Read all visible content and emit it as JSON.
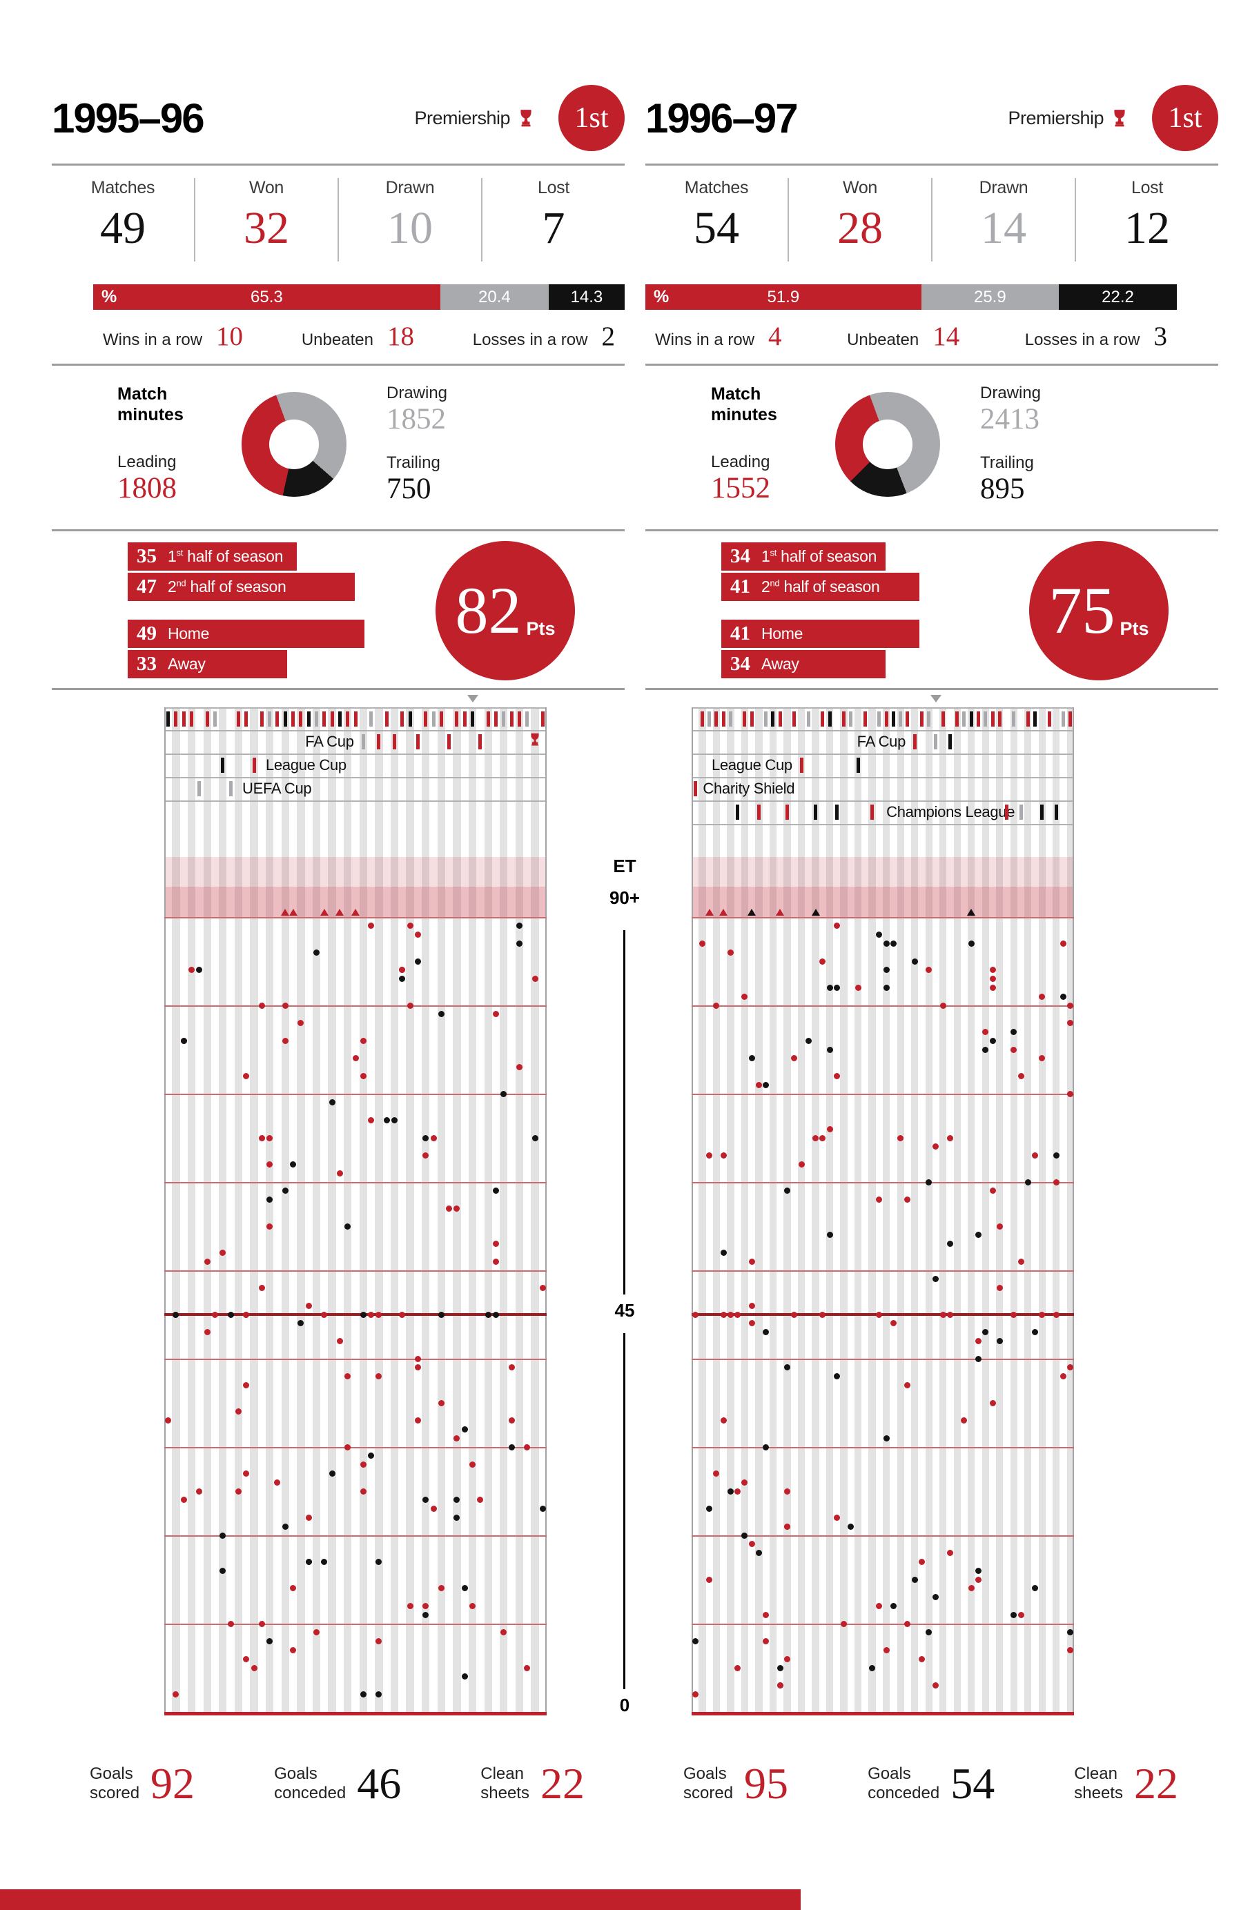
{
  "page": {
    "footer_bar_color": "#c0202a"
  },
  "colors": {
    "red": "#c0202a",
    "gray": "#a8aaad",
    "dark": "#1b1b1b"
  },
  "axis": {
    "extra_time_label": "ET",
    "ninety_plus_label": "90+",
    "half_time_label": "45",
    "zero_label": "0"
  },
  "seasons": [
    {
      "title": "1995–96",
      "competition": {
        "name": "Premiership",
        "position": "1st"
      },
      "record": [
        {
          "label": "Matches",
          "value": "49",
          "color": "dark"
        },
        {
          "label": "Won",
          "value": "32",
          "color": "red"
        },
        {
          "label": "Drawn",
          "value": "10",
          "color": "gray"
        },
        {
          "label": "Lost",
          "value": "7",
          "color": "dark"
        }
      ],
      "pct": {
        "symbol": "%",
        "segments": [
          {
            "value": "65.3",
            "type": "win"
          },
          {
            "value": "20.4",
            "type": "draw"
          },
          {
            "value": "14.3",
            "type": "loss"
          }
        ]
      },
      "streaks": [
        {
          "label": "Wins in a row",
          "value": "10",
          "color": "red"
        },
        {
          "label": "Unbeaten",
          "value": "18",
          "color": "red"
        },
        {
          "label": "Losses in a row",
          "value": "2",
          "color": "dark"
        }
      ],
      "minutes": {
        "heading_line1": "Match",
        "heading_line2": "minutes",
        "leading_label": "Leading",
        "leading": 1808,
        "drawing_label": "Drawing",
        "drawing": 1852,
        "trailing_label": "Trailing",
        "trailing": 750
      },
      "split_bars": [
        {
          "value": 35,
          "pre": "1",
          "sup": "st",
          "post": " half of season",
          "group_gap": false
        },
        {
          "value": 47,
          "pre": "2",
          "sup": "nd",
          "post": " half of season",
          "group_gap": false
        },
        {
          "value": 49,
          "pre": "Home",
          "sup": "",
          "post": "",
          "group_gap": true
        },
        {
          "value": 33,
          "pre": "Away",
          "sup": "",
          "post": "",
          "group_gap": false
        }
      ],
      "points": {
        "value": "82",
        "unit": "Pts"
      },
      "totals": [
        {
          "label_line1": "Goals",
          "label_line2": "scored",
          "value": "92",
          "color": "red"
        },
        {
          "label_line1": "Goals",
          "label_line2": "conceded",
          "value": "46",
          "color": "dark"
        },
        {
          "label_line1": "Clean",
          "label_line2": "sheets",
          "value": "22",
          "color": "red"
        }
      ]
    },
    {
      "title": "1996–97",
      "competition": {
        "name": "Premiership",
        "position": "1st"
      },
      "record": [
        {
          "label": "Matches",
          "value": "54",
          "color": "dark"
        },
        {
          "label": "Won",
          "value": "28",
          "color": "red"
        },
        {
          "label": "Drawn",
          "value": "14",
          "color": "gray"
        },
        {
          "label": "Lost",
          "value": "12",
          "color": "dark"
        }
      ],
      "pct": {
        "symbol": "%",
        "segments": [
          {
            "value": "51.9",
            "type": "win"
          },
          {
            "value": "25.9",
            "type": "draw"
          },
          {
            "value": "22.2",
            "type": "loss"
          }
        ]
      },
      "streaks": [
        {
          "label": "Wins in a row",
          "value": "4",
          "color": "red"
        },
        {
          "label": "Unbeaten",
          "value": "14",
          "color": "red"
        },
        {
          "label": "Losses in a row",
          "value": "3",
          "color": "dark"
        }
      ],
      "minutes": {
        "heading_line1": "Match",
        "heading_line2": "minutes",
        "leading_label": "Leading",
        "leading": 1552,
        "drawing_label": "Drawing",
        "drawing": 2413,
        "trailing_label": "Trailing",
        "trailing": 895
      },
      "split_bars": [
        {
          "value": 34,
          "pre": "1",
          "sup": "st",
          "post": " half of season",
          "group_gap": false
        },
        {
          "value": 41,
          "pre": "2",
          "sup": "nd",
          "post": " half of season",
          "group_gap": false
        },
        {
          "value": 41,
          "pre": "Home",
          "sup": "",
          "post": "",
          "group_gap": true
        },
        {
          "value": 34,
          "pre": "Away",
          "sup": "",
          "post": "",
          "group_gap": false
        }
      ],
      "points": {
        "value": "75",
        "unit": "Pts"
      },
      "totals": [
        {
          "label_line1": "Goals",
          "label_line2": "scored",
          "value": "95",
          "color": "red"
        },
        {
          "label_line1": "Goals",
          "label_line2": "conceded",
          "value": "54",
          "color": "dark"
        },
        {
          "label_line1": "Clean",
          "label_line2": "sheets",
          "value": "22",
          "color": "red"
        }
      ]
    }
  ],
  "chart_data": [
    {
      "type": "timeline-scatter",
      "season": "1995–96",
      "matches": 49,
      "competition_rows": [
        {
          "id": "FA",
          "label": "FA Cup",
          "label_side": "left",
          "label_anchor": 25
        },
        {
          "id": "LC",
          "label": "League Cup",
          "label_side": "right",
          "label_anchor": 13
        },
        {
          "id": "UE",
          "label": "UEFA Cup",
          "label_side": "right",
          "label_anchor": 10
        }
      ],
      "match_events": [
        "P.L",
        "P.W",
        "P.W",
        "P.W",
        "UE.D",
        "P.W",
        "P.D",
        "LC.L",
        "UE.D",
        "P.W",
        "P.W",
        "LC.W",
        "P.W",
        "P.D",
        "P.W",
        "P.L",
        "P.W",
        "P.W",
        "P.L",
        "P.D",
        "P.W",
        "P.W",
        "P.L",
        "P.W",
        "P.W",
        "FA.D",
        "P.D",
        "FA.W",
        "P.W",
        "FA.W",
        "P.W",
        "P.L",
        "FA.W",
        "P.W",
        "P.D",
        "P.W",
        "FA.W",
        "P.W",
        "P.W",
        "P.L",
        "FA.W",
        "P.W",
        "P.W",
        "P.D",
        "P.W",
        "P.W",
        "P.D",
        "FA.W",
        "P.W"
      ],
      "trophy": {
        "row": "FA",
        "match": 48
      },
      "season_marker_match": 40,
      "goals_90plus": [
        {
          "match": 16,
          "result": "W"
        },
        {
          "match": 17,
          "result": "W"
        },
        {
          "match": 21,
          "result": "W"
        },
        {
          "match": 23,
          "result": "W"
        },
        {
          "match": 25,
          "result": "W"
        }
      ],
      "goals_scored": 92,
      "goals_conceded": 46,
      "dots": {
        "seed": 41,
        "scored": 87,
        "conceded": 46
      },
      "grid_minutes": [
        80,
        70,
        60,
        50,
        40,
        30,
        20,
        10
      ],
      "halftime_minute": 45,
      "fulltime_minute": 90
    },
    {
      "type": "timeline-scatter",
      "season": "1996–97",
      "matches": 54,
      "competition_rows": [
        {
          "id": "FA",
          "label": "FA Cup",
          "label_side": "left",
          "label_anchor": 31
        },
        {
          "id": "LC",
          "label": "League Cup",
          "label_side": "left",
          "label_anchor": 15
        },
        {
          "id": "CS",
          "label": "Charity Shield",
          "label_side": "right",
          "label_anchor": 1.6
        },
        {
          "id": "CL",
          "label": "Champions League",
          "label_side": "right",
          "label_anchor": 27.5
        }
      ],
      "match_events": [
        "CS.W",
        "P.W",
        "P.D",
        "P.W",
        "P.W",
        "P.D",
        "CL.L",
        "P.W",
        "P.W",
        "CL.W",
        "P.D",
        "P.L",
        "P.W",
        "CL.W",
        "P.W",
        "LC.W",
        "P.D",
        "CL.L",
        "P.W",
        "P.L",
        "CL.L",
        "P.W",
        "P.D",
        "LC.L",
        "P.W",
        "CL.W",
        "P.D",
        "P.W",
        "P.L",
        "P.D",
        "P.W",
        "FA.W",
        "P.W",
        "P.D",
        "FA.D",
        "P.W",
        "FA.L",
        "P.W",
        "P.D",
        "P.L",
        "P.W",
        "P.D",
        "P.W",
        "P.W",
        "CL.W",
        "P.D",
        "CL.D",
        "P.W",
        "P.L",
        "CL.L",
        "P.W",
        "CL.L",
        "P.D",
        "P.W"
      ],
      "trophy": null,
      "season_marker_match": 35,
      "goals_90plus": [
        {
          "match": 3,
          "result": "W"
        },
        {
          "match": 5,
          "result": "W"
        },
        {
          "match": 9,
          "result": "L"
        },
        {
          "match": 13,
          "result": "W"
        },
        {
          "match": 18,
          "result": "L"
        },
        {
          "match": 40,
          "result": "L"
        }
      ],
      "goals_scored": 95,
      "goals_conceded": 54,
      "dots": {
        "seed": 97,
        "scored": 92,
        "conceded": 51
      },
      "grid_minutes": [
        80,
        70,
        60,
        50,
        40,
        30,
        20,
        10
      ],
      "halftime_minute": 45,
      "fulltime_minute": 90
    }
  ]
}
